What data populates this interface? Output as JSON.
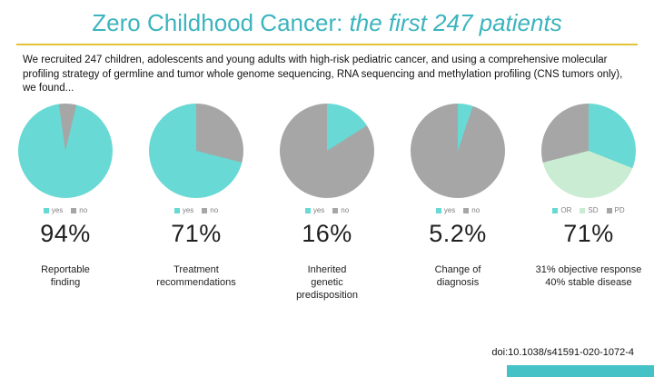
{
  "slide": {
    "title_normal": "Zero Childhood Cancer: ",
    "title_italic": "the first 247 patients",
    "intro": "We recruited 247 children, adolescents and young adults with high-risk pediatric cancer, and using a comprehensive molecular profiling strategy of germline and tumor whole genome sequencing, RNA sequencing and methylation profiling (CNS tumors only), we found...",
    "doi": "doi:10.1038/s41591-020-1072-4"
  },
  "colors": {
    "teal": "#68d9d4",
    "gray": "#a6a6a6",
    "green": "#c9ecd3",
    "title_teal": "#3cb4be",
    "rule_gold": "#e3c338",
    "accent_bar": "#45c2c6"
  },
  "chart_data": [
    {
      "type": "pie",
      "stat": "94%",
      "caption": "Reportable\nfinding",
      "legend": [
        {
          "label": "yes",
          "color": "teal"
        },
        {
          "label": "no",
          "color": "gray"
        }
      ],
      "slices": [
        {
          "label": "no",
          "value": 6,
          "color": "gray"
        },
        {
          "label": "yes",
          "value": 94,
          "color": "teal"
        }
      ],
      "start_angle": -8
    },
    {
      "type": "pie",
      "stat": "71%",
      "caption": "Treatment\nrecommendations",
      "legend": [
        {
          "label": "yes",
          "color": "teal"
        },
        {
          "label": "no",
          "color": "gray"
        }
      ],
      "slices": [
        {
          "label": "no",
          "value": 29,
          "color": "gray"
        },
        {
          "label": "yes",
          "value": 71,
          "color": "teal"
        }
      ],
      "start_angle": 0
    },
    {
      "type": "pie",
      "stat": "16%",
      "caption": "Inherited\ngenetic\npredisposition",
      "legend": [
        {
          "label": "yes",
          "color": "teal"
        },
        {
          "label": "no",
          "color": "gray"
        }
      ],
      "slices": [
        {
          "label": "yes",
          "value": 16,
          "color": "teal"
        },
        {
          "label": "no",
          "value": 84,
          "color": "gray"
        }
      ],
      "start_angle": 0
    },
    {
      "type": "pie",
      "stat": "5.2%",
      "caption": "Change of\ndiagnosis",
      "legend": [
        {
          "label": "yes",
          "color": "teal"
        },
        {
          "label": "no",
          "color": "gray"
        }
      ],
      "slices": [
        {
          "label": "yes",
          "value": 5.2,
          "color": "teal"
        },
        {
          "label": "no",
          "value": 94.8,
          "color": "gray"
        }
      ],
      "start_angle": 0
    },
    {
      "type": "pie",
      "stat": "71%",
      "caption": "31% objective response\n40% stable disease",
      "legend": [
        {
          "label": "OR",
          "color": "teal"
        },
        {
          "label": "SD",
          "color": "green"
        },
        {
          "label": "PD",
          "color": "gray"
        }
      ],
      "slices": [
        {
          "label": "OR",
          "value": 31,
          "color": "teal"
        },
        {
          "label": "SD",
          "value": 40,
          "color": "green"
        },
        {
          "label": "PD",
          "value": 29,
          "color": "gray"
        }
      ],
      "start_angle": 0
    }
  ]
}
